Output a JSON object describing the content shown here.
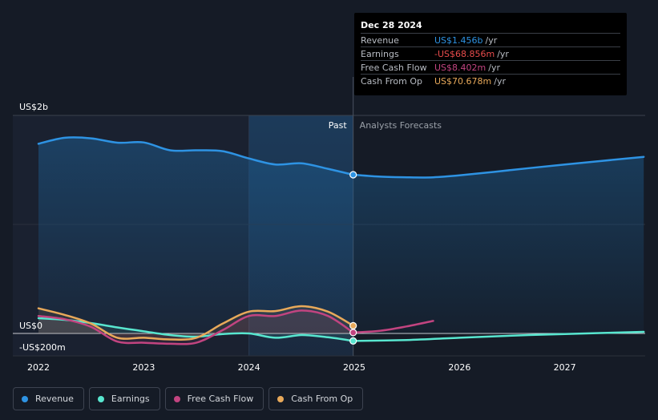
{
  "colors": {
    "revenue": "#2e93e3",
    "earnings": "#58e6cf",
    "free_cash_flow": "#c24480",
    "cash_from_op": "#e8a95a",
    "earnings_negative": "#e84c4c"
  },
  "tooltip": {
    "date": "Dec 28 2024",
    "rows": [
      {
        "label": "Revenue",
        "value": "US$1.456b",
        "unit": "/yr",
        "color": "#2e93e3"
      },
      {
        "label": "Earnings",
        "value": "-US$68.856m",
        "unit": "/yr",
        "color": "#e84c4c"
      },
      {
        "label": "Free Cash Flow",
        "value": "US$8.402m",
        "unit": "/yr",
        "color": "#c24480"
      },
      {
        "label": "Cash From Op",
        "value": "US$70.678m",
        "unit": "/yr",
        "color": "#e8a95a"
      }
    ]
  },
  "legend": [
    {
      "label": "Revenue",
      "color": "#2e93e3"
    },
    {
      "label": "Earnings",
      "color": "#58e6cf"
    },
    {
      "label": "Free Cash Flow",
      "color": "#c24480"
    },
    {
      "label": "Cash From Op",
      "color": "#e8a95a"
    }
  ],
  "chart_data": {
    "type": "line",
    "y_unit": "US$",
    "ylim": [
      -200,
      2000
    ],
    "y_tick_labels": [
      {
        "value": 2000,
        "label": "US$2b"
      },
      {
        "value": 0,
        "label": "US$0"
      },
      {
        "value": -200,
        "label": "-US$200m"
      }
    ],
    "xlim": [
      2021.9,
      2027.75
    ],
    "x_tick_labels": [
      {
        "value": 2022,
        "label": "2022"
      },
      {
        "value": 2023,
        "label": "2023"
      },
      {
        "value": 2024,
        "label": "2024"
      },
      {
        "value": 2025,
        "label": "2025"
      },
      {
        "value": 2026,
        "label": "2026"
      },
      {
        "value": 2027,
        "label": "2027"
      }
    ],
    "past_label": "Past",
    "forecast_label": "Analysts Forecasts",
    "divider_x": 2024.99,
    "highlight_start_x": 2024.0,
    "series": [
      {
        "name": "Revenue",
        "key": "revenue",
        "area": true,
        "past": [
          [
            2022.0,
            1740
          ],
          [
            2022.25,
            1795
          ],
          [
            2022.5,
            1790
          ],
          [
            2022.75,
            1750
          ],
          [
            2023.0,
            1752
          ],
          [
            2023.25,
            1680
          ],
          [
            2023.5,
            1680
          ],
          [
            2023.75,
            1672
          ],
          [
            2024.0,
            1605
          ],
          [
            2024.25,
            1550
          ],
          [
            2024.5,
            1560
          ],
          [
            2024.75,
            1510
          ],
          [
            2024.99,
            1456
          ]
        ],
        "forecast": [
          [
            2024.99,
            1456
          ],
          [
            2025.25,
            1438
          ],
          [
            2025.5,
            1432
          ],
          [
            2025.75,
            1432
          ],
          [
            2026.0,
            1450
          ],
          [
            2026.5,
            1500
          ],
          [
            2027.0,
            1550
          ],
          [
            2027.75,
            1620
          ]
        ]
      },
      {
        "name": "Earnings",
        "key": "earnings",
        "area": false,
        "past": [
          [
            2022.0,
            140
          ],
          [
            2022.25,
            125
          ],
          [
            2022.5,
            95
          ],
          [
            2022.75,
            55
          ],
          [
            2023.0,
            20
          ],
          [
            2023.25,
            -15
          ],
          [
            2023.5,
            -30
          ],
          [
            2023.75,
            -5
          ],
          [
            2024.0,
            0
          ],
          [
            2024.25,
            -40
          ],
          [
            2024.5,
            -15
          ],
          [
            2024.75,
            -35
          ],
          [
            2024.99,
            -69
          ]
        ],
        "forecast": [
          [
            2024.99,
            -69
          ],
          [
            2025.5,
            -60
          ],
          [
            2026.0,
            -40
          ],
          [
            2026.5,
            -20
          ],
          [
            2027.0,
            -5
          ],
          [
            2027.75,
            15
          ]
        ]
      },
      {
        "name": "Free Cash Flow",
        "key": "free_cash_flow",
        "area": false,
        "past": [
          [
            2022.0,
            160
          ],
          [
            2022.25,
            130
          ],
          [
            2022.5,
            60
          ],
          [
            2022.75,
            -75
          ],
          [
            2023.0,
            -85
          ],
          [
            2023.25,
            -95
          ],
          [
            2023.5,
            -85
          ],
          [
            2023.75,
            30
          ],
          [
            2024.0,
            160
          ],
          [
            2024.25,
            160
          ],
          [
            2024.5,
            210
          ],
          [
            2024.75,
            160
          ],
          [
            2024.99,
            8
          ]
        ],
        "forecast": [
          [
            2024.99,
            8
          ],
          [
            2025.25,
            25
          ],
          [
            2025.5,
            65
          ],
          [
            2025.75,
            115
          ]
        ]
      },
      {
        "name": "Cash From Op",
        "key": "cash_from_op",
        "area": false,
        "past": [
          [
            2022.0,
            230
          ],
          [
            2022.25,
            170
          ],
          [
            2022.5,
            90
          ],
          [
            2022.75,
            -40
          ],
          [
            2023.0,
            -40
          ],
          [
            2023.25,
            -55
          ],
          [
            2023.5,
            -40
          ],
          [
            2023.75,
            90
          ],
          [
            2024.0,
            200
          ],
          [
            2024.25,
            205
          ],
          [
            2024.5,
            250
          ],
          [
            2024.75,
            200
          ],
          [
            2024.99,
            71
          ]
        ],
        "forecast": []
      }
    ]
  }
}
